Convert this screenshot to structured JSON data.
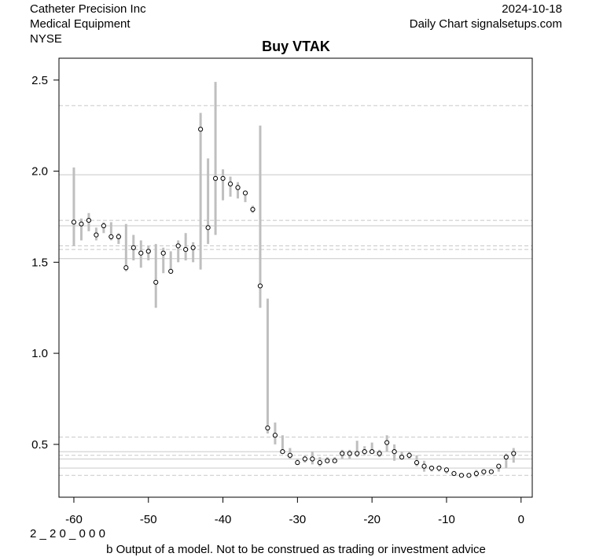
{
  "header": {
    "company": "Catheter Precision Inc",
    "sector": "Medical Equipment",
    "exchange": "NYSE",
    "date": "2024-10-18",
    "source": "Daily Chart signalsetups.com"
  },
  "footer": {
    "code": "2 _ 2 0 _ 0 0 0",
    "disclaimer": "b Output of a model. Not to be construed as trading or investment advice"
  },
  "chart_data": {
    "type": "scatter",
    "title": "Buy VTAK",
    "xlabel": "",
    "ylabel": "",
    "xlim": [
      -62,
      1.5
    ],
    "ylim": [
      0.21,
      2.62
    ],
    "x_ticks": [
      -60,
      -50,
      -40,
      -30,
      -20,
      -10,
      0
    ],
    "y_ticks": [
      0.5,
      1.0,
      1.5,
      2.0,
      2.5
    ],
    "grid": false,
    "colors": {
      "range_bar": "#bfbfbf",
      "point": "#000000",
      "solid_line": "#c8c8c8",
      "dashed_line": "#c8c8c8"
    },
    "solid_levels": [
      1.98,
      1.7,
      1.52,
      0.46,
      0.42,
      0.37
    ],
    "dashed_levels": [
      2.36,
      1.73,
      1.59,
      1.57,
      0.54,
      0.44,
      0.37,
      0.33
    ],
    "series": [
      {
        "x": [
          -60,
          -59,
          -58,
          -57,
          -56,
          -55,
          -54,
          -53,
          -52,
          -51,
          -50,
          -49,
          -48,
          -47,
          -46,
          -45,
          -44,
          -43,
          -42,
          -41,
          -40,
          -39,
          -38,
          -37,
          -36,
          -35,
          -34,
          -33,
          -32,
          -31,
          -30,
          -29,
          -28,
          -27,
          -26,
          -25,
          -24,
          -23,
          -22,
          -21,
          -20,
          -19,
          -18,
          -17,
          -16,
          -15,
          -14,
          -13,
          -12,
          -11,
          -10,
          -9,
          -8,
          -7,
          -6,
          -5,
          -4,
          -3,
          -2,
          -1
        ],
        "close": [
          1.72,
          1.71,
          1.73,
          1.65,
          1.7,
          1.64,
          1.64,
          1.47,
          1.58,
          1.55,
          1.56,
          1.39,
          1.55,
          1.45,
          1.59,
          1.57,
          1.58,
          2.23,
          1.69,
          1.96,
          1.96,
          1.93,
          1.91,
          1.88,
          1.79,
          1.37,
          0.59,
          0.55,
          0.46,
          0.44,
          0.4,
          0.42,
          0.42,
          0.4,
          0.41,
          0.41,
          0.45,
          0.45,
          0.45,
          0.46,
          0.46,
          0.45,
          0.51,
          0.46,
          0.43,
          0.44,
          0.4,
          0.38,
          0.37,
          0.37,
          0.36,
          0.34,
          0.33,
          0.33,
          0.34,
          0.35,
          0.35,
          0.38,
          0.43,
          0.45
        ],
        "high": [
          2.02,
          1.74,
          1.77,
          1.69,
          1.72,
          1.72,
          1.66,
          1.71,
          1.65,
          1.62,
          1.59,
          1.6,
          1.58,
          1.56,
          1.62,
          1.66,
          1.61,
          2.32,
          2.07,
          2.49,
          2.01,
          1.97,
          1.94,
          1.89,
          1.81,
          2.25,
          1.3,
          0.62,
          0.55,
          0.48,
          0.42,
          0.44,
          0.46,
          0.43,
          0.43,
          0.43,
          0.47,
          0.47,
          0.52,
          0.49,
          0.51,
          0.47,
          0.55,
          0.5,
          0.46,
          0.46,
          0.44,
          0.41,
          0.38,
          0.38,
          0.37,
          0.35,
          0.34,
          0.34,
          0.36,
          0.36,
          0.36,
          0.39,
          0.45,
          0.48
        ],
        "low": [
          1.59,
          1.62,
          1.67,
          1.62,
          1.66,
          1.62,
          1.6,
          1.45,
          1.51,
          1.47,
          1.51,
          1.25,
          1.44,
          1.44,
          1.5,
          1.51,
          1.5,
          1.46,
          1.6,
          1.65,
          1.84,
          1.86,
          1.85,
          1.83,
          1.77,
          1.25,
          0.56,
          0.5,
          0.45,
          0.42,
          0.39,
          0.4,
          0.39,
          0.38,
          0.4,
          0.4,
          0.42,
          0.42,
          0.43,
          0.44,
          0.45,
          0.43,
          0.46,
          0.41,
          0.42,
          0.42,
          0.38,
          0.35,
          0.35,
          0.35,
          0.34,
          0.33,
          0.32,
          0.32,
          0.32,
          0.33,
          0.34,
          0.35,
          0.37,
          0.4
        ]
      }
    ]
  }
}
